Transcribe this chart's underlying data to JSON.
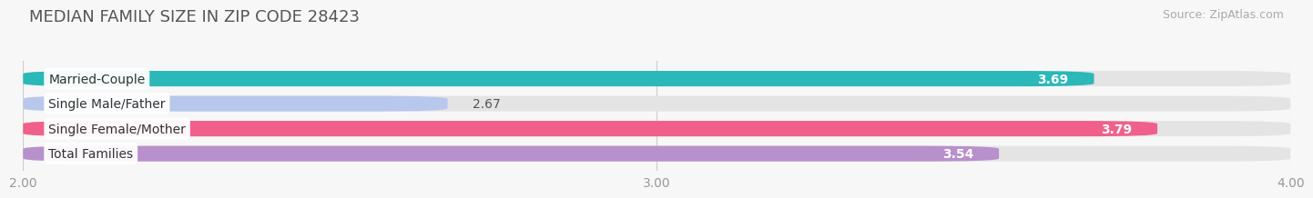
{
  "title": "MEDIAN FAMILY SIZE IN ZIP CODE 28423",
  "source": "Source: ZipAtlas.com",
  "categories": [
    "Married-Couple",
    "Single Male/Father",
    "Single Female/Mother",
    "Total Families"
  ],
  "values": [
    3.69,
    2.67,
    3.79,
    3.54
  ],
  "bar_colors": [
    "#2ab8b8",
    "#b8c8ec",
    "#f0608a",
    "#b890cc"
  ],
  "xlim": [
    2.0,
    4.0
  ],
  "xticks": [
    2.0,
    3.0,
    4.0
  ],
  "xtick_labels": [
    "2.00",
    "3.00",
    "4.00"
  ],
  "bar_height": 0.62,
  "title_fontsize": 13,
  "source_fontsize": 9,
  "label_fontsize": 10,
  "value_fontsize": 10,
  "tick_fontsize": 10,
  "background_color": "#f7f7f7",
  "bar_bg_color": "#e4e4e4"
}
